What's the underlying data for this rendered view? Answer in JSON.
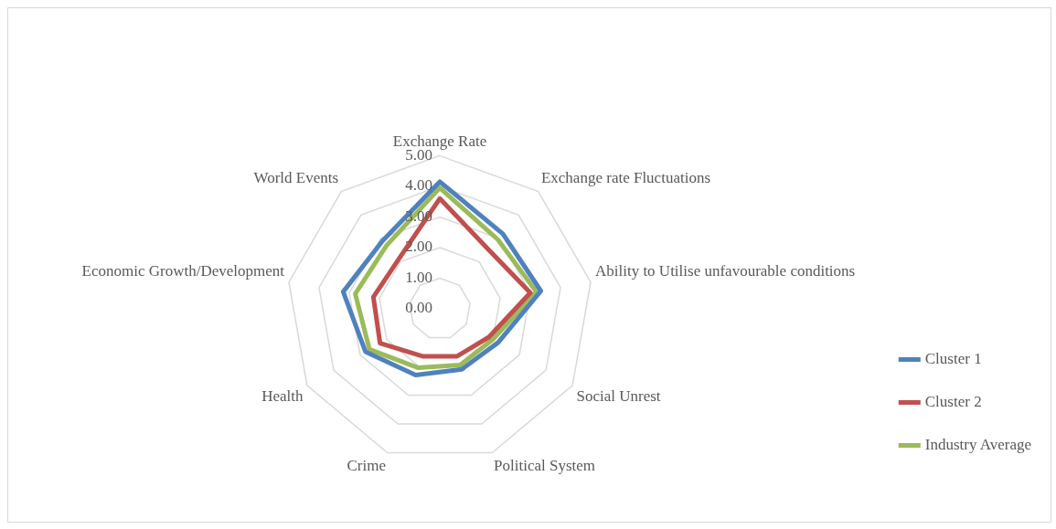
{
  "chart_data": {
    "type": "radar",
    "categories": [
      "Exchange Rate",
      "Exchange rate Fluctuations",
      "Ability to Utilise unfavourable conditions",
      "Social Unrest",
      "Political System",
      "Crime",
      "Health",
      "Economic Growth/Development",
      "World Events"
    ],
    "series": [
      {
        "name": "Cluster 1",
        "color": "#4f81bd",
        "values": [
          4.15,
          3.2,
          3.35,
          2.2,
          2.1,
          2.3,
          2.8,
          3.2,
          2.9
        ]
      },
      {
        "name": "Cluster 2",
        "color": "#c0504d",
        "values": [
          3.6,
          2.5,
          3.0,
          1.85,
          1.65,
          1.65,
          2.25,
          2.2,
          2.1
        ]
      },
      {
        "name": "Industry Average",
        "color": "#9bbb59",
        "values": [
          3.95,
          2.95,
          3.2,
          2.0,
          1.95,
          2.05,
          2.65,
          2.8,
          2.7
        ]
      }
    ],
    "ylim": [
      0,
      5
    ],
    "yticks": [
      {
        "value": 0,
        "label": "0.00"
      },
      {
        "value": 1,
        "label": "1.00"
      },
      {
        "value": 2,
        "label": "2.00"
      },
      {
        "value": 3,
        "label": "3.00"
      },
      {
        "value": 4,
        "label": "4.00"
      },
      {
        "value": 5,
        "label": "5.00"
      }
    ],
    "grid": true,
    "legend": "right",
    "marker": "none"
  }
}
